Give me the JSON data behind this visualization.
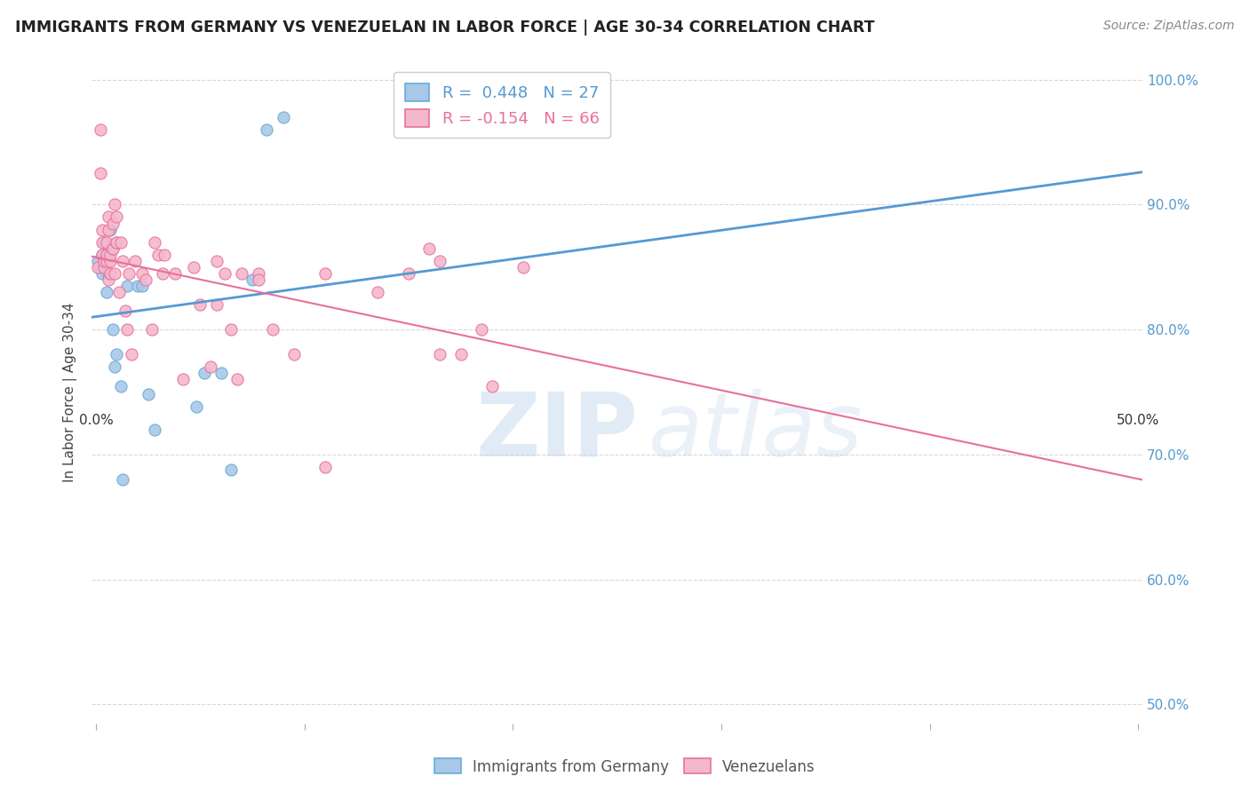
{
  "title": "IMMIGRANTS FROM GERMANY VS VENEZUELAN IN LABOR FORCE | AGE 30-34 CORRELATION CHART",
  "source": "Source: ZipAtlas.com",
  "ylabel": "In Labor Force | Age 30-34",
  "xlim": [
    -0.002,
    0.502
  ],
  "ylim": [
    0.485,
    1.015
  ],
  "xtick_vals": [
    0.0,
    0.5
  ],
  "xtick_labels_ends": [
    "0.0%",
    "50.0%"
  ],
  "ytick_vals": [
    0.5,
    0.6,
    0.7,
    0.8,
    0.9,
    1.0
  ],
  "ytick_labels_right": [
    "50.0%",
    "60.0%",
    "70.0%",
    "80.0%",
    "90.0%",
    "100.0%"
  ],
  "germany_R": 0.448,
  "germany_N": 27,
  "venezuela_R": -0.154,
  "venezuela_N": 66,
  "germany_color": "#a8c8e8",
  "venezuela_color": "#f4b8cc",
  "germany_edge_color": "#6aaad4",
  "venezuela_edge_color": "#e8709a",
  "germany_line_color": "#5599d4",
  "venezuela_line_color": "#e8709a",
  "legend_label_germany": "Immigrants from Germany",
  "legend_label_venezuela": "Venezuelans",
  "germany_x": [
    0.001,
    0.002,
    0.003,
    0.003,
    0.004,
    0.004,
    0.005,
    0.005,
    0.006,
    0.007,
    0.008,
    0.009,
    0.01,
    0.012,
    0.013,
    0.015,
    0.02,
    0.022,
    0.025,
    0.028,
    0.048,
    0.052,
    0.06,
    0.065,
    0.075,
    0.082,
    0.09
  ],
  "germany_y": [
    0.855,
    0.85,
    0.845,
    0.86,
    0.87,
    0.855,
    0.83,
    0.86,
    0.845,
    0.88,
    0.8,
    0.77,
    0.78,
    0.755,
    0.68,
    0.835,
    0.835,
    0.835,
    0.748,
    0.72,
    0.738,
    0.765,
    0.765,
    0.688,
    0.84,
    0.96,
    0.97
  ],
  "venezuela_x": [
    0.001,
    0.002,
    0.002,
    0.003,
    0.003,
    0.003,
    0.004,
    0.004,
    0.005,
    0.005,
    0.005,
    0.006,
    0.006,
    0.006,
    0.007,
    0.007,
    0.007,
    0.008,
    0.008,
    0.008,
    0.009,
    0.009,
    0.01,
    0.01,
    0.01,
    0.011,
    0.012,
    0.013,
    0.014,
    0.015,
    0.016,
    0.017,
    0.019,
    0.022,
    0.024,
    0.027,
    0.028,
    0.03,
    0.032,
    0.033,
    0.038,
    0.042,
    0.047,
    0.05,
    0.055,
    0.058,
    0.062,
    0.065,
    0.07,
    0.078,
    0.085,
    0.095,
    0.11,
    0.15,
    0.16,
    0.165,
    0.175,
    0.185,
    0.19,
    0.205,
    0.058,
    0.078,
    0.135,
    0.165,
    0.11,
    0.068
  ],
  "venezuela_y": [
    0.85,
    0.96,
    0.925,
    0.88,
    0.86,
    0.87,
    0.85,
    0.855,
    0.87,
    0.855,
    0.86,
    0.84,
    0.89,
    0.88,
    0.855,
    0.845,
    0.86,
    0.885,
    0.865,
    0.865,
    0.845,
    0.9,
    0.87,
    0.89,
    0.87,
    0.83,
    0.87,
    0.855,
    0.815,
    0.8,
    0.845,
    0.78,
    0.855,
    0.845,
    0.84,
    0.8,
    0.87,
    0.86,
    0.845,
    0.86,
    0.845,
    0.76,
    0.85,
    0.82,
    0.77,
    0.82,
    0.845,
    0.8,
    0.845,
    0.845,
    0.8,
    0.78,
    0.845,
    0.845,
    0.865,
    0.855,
    0.78,
    0.8,
    0.755,
    0.85,
    0.855,
    0.84,
    0.83,
    0.78,
    0.69,
    0.76
  ],
  "watermark_zip": "ZIP",
  "watermark_atlas": "atlas",
  "background_color": "#ffffff",
  "grid_color": "#d8d8d8"
}
